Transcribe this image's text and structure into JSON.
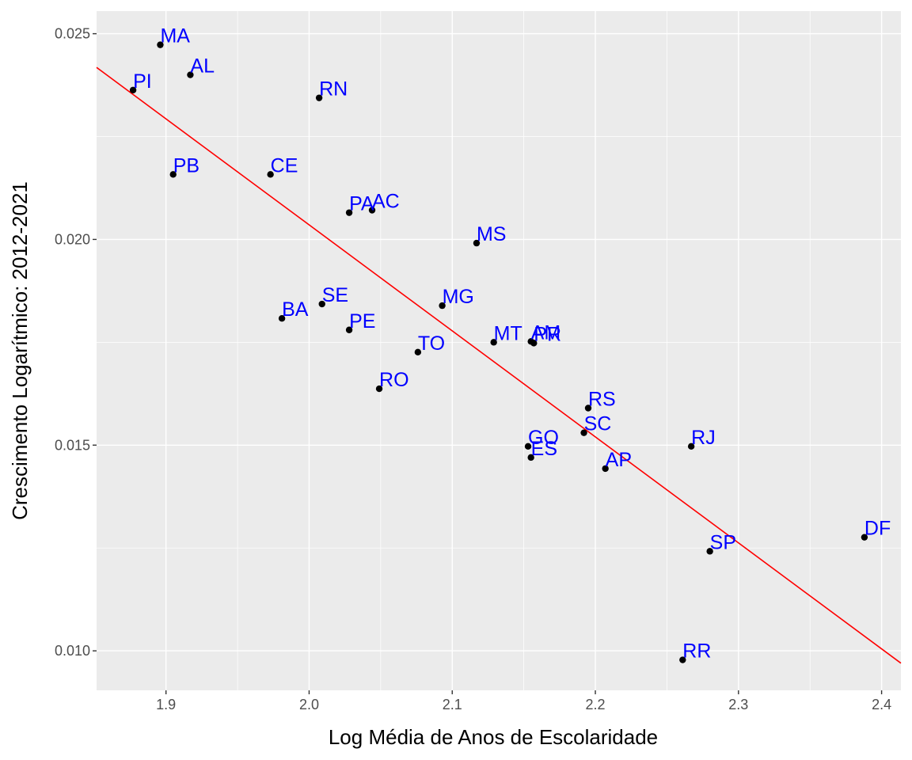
{
  "chart_data": {
    "type": "scatter",
    "title": "",
    "xlabel": "Log Média de Anos de Escolaridade",
    "ylabel": "Crescimento Logarítmico: 2012-2021",
    "xlim": [
      1.8515,
      2.4135
    ],
    "ylim": [
      0.00904,
      0.02555
    ],
    "x_ticks": [
      1.9,
      2.0,
      2.1,
      2.2,
      2.3,
      2.4
    ],
    "x_tick_labels": [
      "1.9",
      "2.0",
      "2.1",
      "2.2",
      "2.3",
      "2.4"
    ],
    "y_ticks": [
      0.01,
      0.015,
      0.02,
      0.025
    ],
    "y_tick_labels": [
      "0.010",
      "0.015",
      "0.020",
      "0.025"
    ],
    "grid": true,
    "point_color": "#000000",
    "label_color": "#0000FF",
    "regression_line": {
      "color": "#FF0000",
      "x": [
        1.8515,
        2.4135
      ],
      "y": [
        0.02418,
        0.0097
      ]
    },
    "points": [
      {
        "label": "MA",
        "x": 1.896,
        "y": 0.02473
      },
      {
        "label": "AL",
        "x": 1.917,
        "y": 0.024
      },
      {
        "label": "PI",
        "x": 1.877,
        "y": 0.02363
      },
      {
        "label": "RN",
        "x": 2.007,
        "y": 0.02344
      },
      {
        "label": "PB",
        "x": 1.905,
        "y": 0.02158
      },
      {
        "label": "CE",
        "x": 1.973,
        "y": 0.02158
      },
      {
        "label": "PA",
        "x": 2.028,
        "y": 0.02065
      },
      {
        "label": "AC",
        "x": 2.044,
        "y": 0.02071
      },
      {
        "label": "MS",
        "x": 2.117,
        "y": 0.01991
      },
      {
        "label": "MG",
        "x": 2.093,
        "y": 0.01839
      },
      {
        "label": "SE",
        "x": 2.009,
        "y": 0.01843
      },
      {
        "label": "BA",
        "x": 1.981,
        "y": 0.01808
      },
      {
        "label": "PE",
        "x": 2.028,
        "y": 0.0178
      },
      {
        "label": "MT",
        "x": 2.129,
        "y": 0.0175
      },
      {
        "label": "AM",
        "x": 2.155,
        "y": 0.01752
      },
      {
        "label": "PR",
        "x": 2.157,
        "y": 0.01748
      },
      {
        "label": "TO",
        "x": 2.076,
        "y": 0.01726
      },
      {
        "label": "RO",
        "x": 2.049,
        "y": 0.01637
      },
      {
        "label": "RS",
        "x": 2.195,
        "y": 0.0159
      },
      {
        "label": "SC",
        "x": 2.192,
        "y": 0.0153
      },
      {
        "label": "GO",
        "x": 2.153,
        "y": 0.01497
      },
      {
        "label": "ES",
        "x": 2.155,
        "y": 0.0147
      },
      {
        "label": "RJ",
        "x": 2.267,
        "y": 0.01497
      },
      {
        "label": "AP",
        "x": 2.207,
        "y": 0.01443
      },
      {
        "label": "DF",
        "x": 2.388,
        "y": 0.01276
      },
      {
        "label": "SP",
        "x": 2.28,
        "y": 0.01242
      },
      {
        "label": "RR",
        "x": 2.261,
        "y": 0.00978
      }
    ]
  }
}
